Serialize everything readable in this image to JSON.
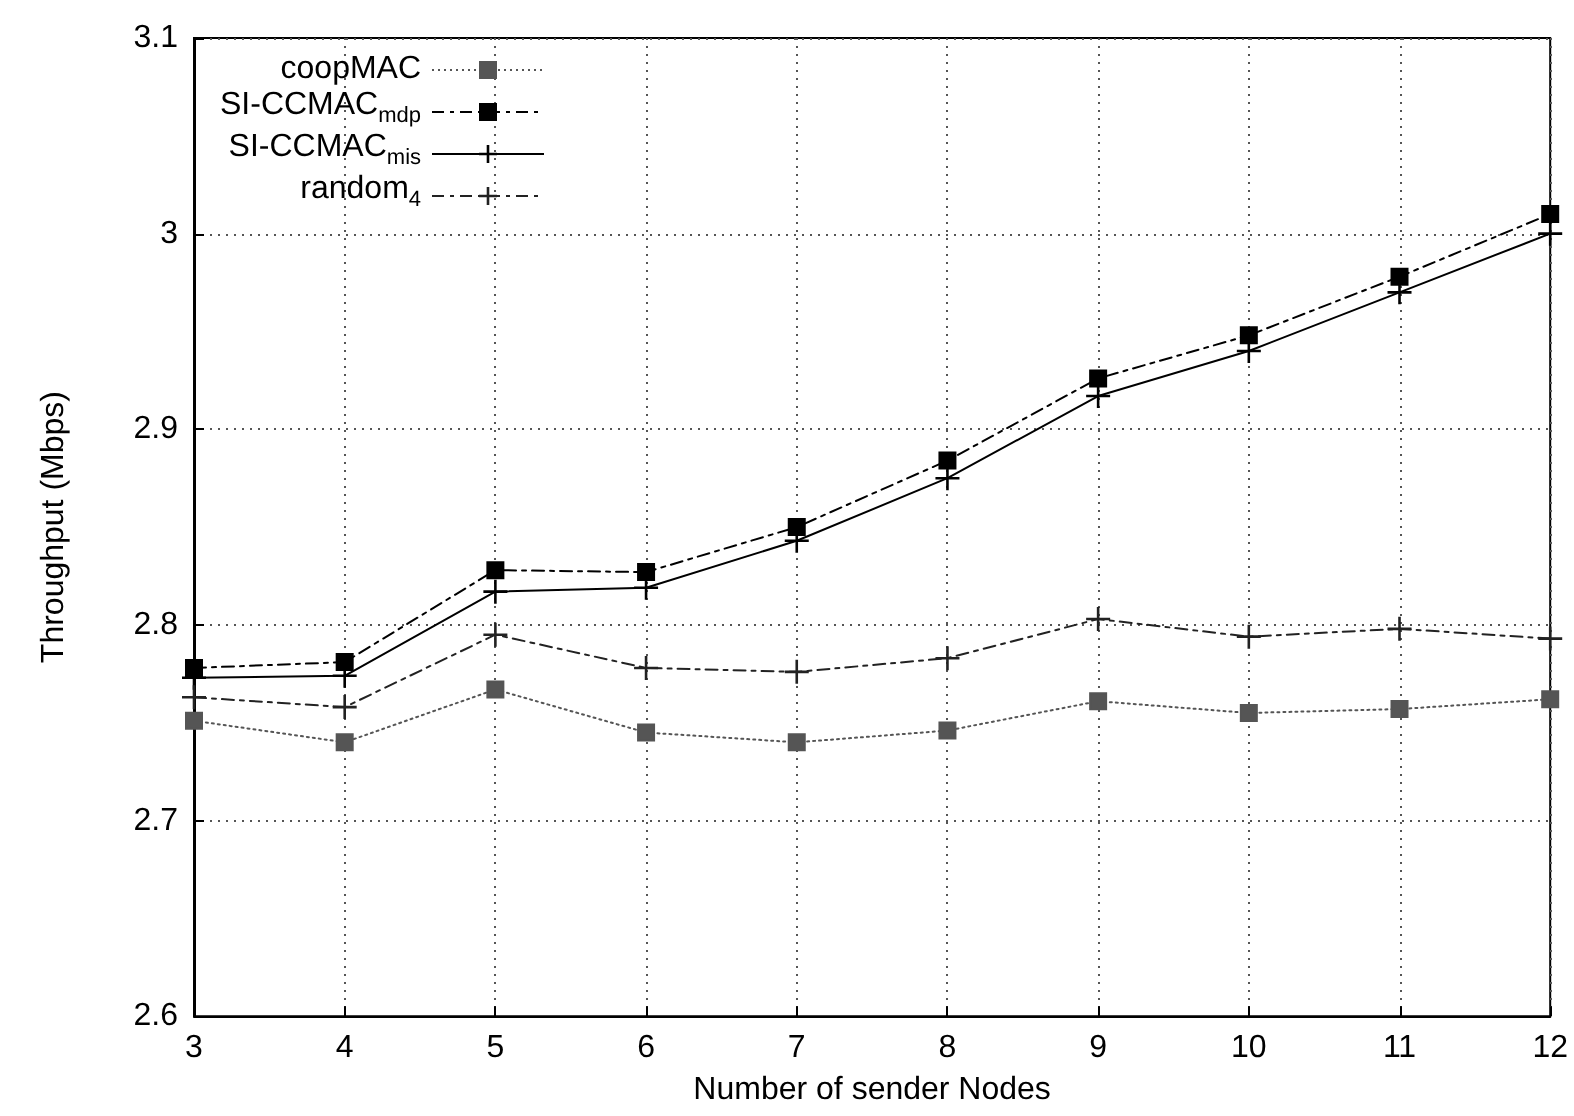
{
  "chart_data": {
    "type": "line",
    "xlabel": "Number of sender Nodes",
    "ylabel": "Throughput (Mbps)",
    "x": [
      3,
      4,
      5,
      6,
      7,
      8,
      9,
      10,
      11,
      12
    ],
    "series": [
      {
        "name": "coopMAC",
        "color": "#555555",
        "marker": "square",
        "line_style": "dotted",
        "values": [
          2.751,
          2.74,
          2.767,
          2.745,
          2.74,
          2.746,
          2.761,
          2.755,
          2.757,
          2.762
        ]
      },
      {
        "name": "SI-CCMAC$_{mdp}$",
        "color": "#000000",
        "marker": "square",
        "line_style": "dashed",
        "values": [
          2.778,
          2.781,
          2.828,
          2.827,
          2.85,
          2.884,
          2.926,
          2.948,
          2.978,
          3.01
        ]
      },
      {
        "name": "SI-CCMAC$_{mis}$",
        "color": "#000000",
        "marker": "cross",
        "line_style": "solid",
        "values": [
          2.773,
          2.774,
          2.817,
          2.819,
          2.843,
          2.875,
          2.917,
          2.94,
          2.97,
          3.0
        ]
      },
      {
        "name": "random$_{4}$",
        "color": "#222222",
        "marker": "cross",
        "line_style": "dashed",
        "values": [
          2.763,
          2.758,
          2.795,
          2.778,
          2.776,
          2.783,
          2.803,
          2.794,
          2.798,
          2.793
        ]
      }
    ],
    "xlim": [
      3,
      12
    ],
    "xticks": [
      3,
      4,
      5,
      6,
      7,
      8,
      9,
      10,
      11,
      12
    ],
    "ylim": [
      2.6,
      3.1
    ],
    "yticks": [
      2.6,
      2.7,
      2.8,
      2.9,
      3,
      3.1
    ],
    "grid": true,
    "legend": "top left"
  }
}
